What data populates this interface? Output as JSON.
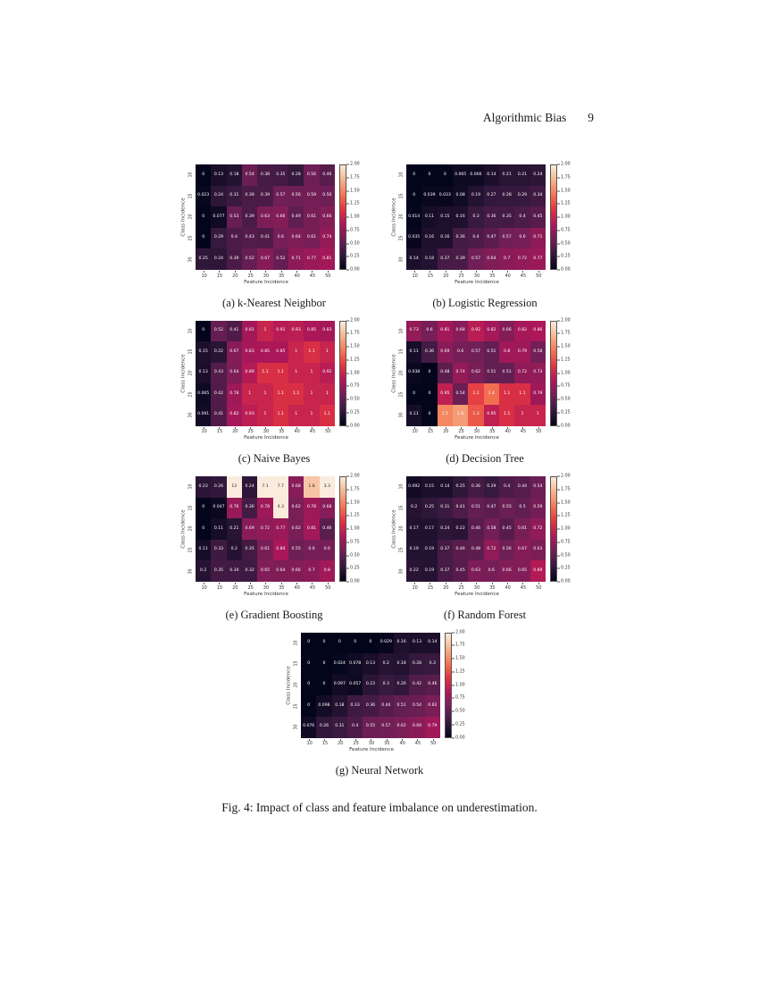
{
  "header": {
    "running_title": "Algorithmic Bias",
    "page_number": "9"
  },
  "figure": {
    "caption": "Fig. 4: Impact of class and feature imbalance on underestimation.",
    "x_label": "Feature Incidence",
    "y_label": "Class Incidence",
    "x_ticks": [
      "10",
      "15",
      "20",
      "25",
      "30",
      "35",
      "40",
      "45",
      "50"
    ],
    "y_ticks": [
      "10",
      "15",
      "20",
      "25",
      "30"
    ],
    "colorbar_ticks": [
      "2.00",
      "1.75",
      "1.50",
      "1.25",
      "1.00",
      "0.75",
      "0.50",
      "0.25",
      "0.00"
    ],
    "colormap_stops": [
      "#03051A",
      "#35193E",
      "#701F57",
      "#AD1759",
      "#E13342",
      "#F37651",
      "#F6B48E",
      "#FAEBDD"
    ],
    "vmin": 0,
    "vmax": 2
  },
  "chart_data": [
    {
      "type": "heatmap",
      "label": "(a) k-Nearest Neighbor",
      "values": [
        [
          "0",
          "0.13",
          "0.18",
          "0.54",
          "0.38",
          "0.35",
          "0.28",
          "0.56",
          "0.46"
        ],
        [
          "0.023",
          "0.24",
          "0.31",
          "0.39",
          "0.39",
          "0.57",
          "0.56",
          "0.59",
          "0.56"
        ],
        [
          "0",
          "0.077",
          "0.53",
          "0.39",
          "0.63",
          "0.66",
          "0.49",
          "0.61",
          "0.66"
        ],
        [
          "0",
          "0.29",
          "0.4",
          "0.43",
          "0.41",
          "0.6",
          "0.64",
          "0.61",
          "0.74"
        ],
        [
          "0.25",
          "0.24",
          "0.39",
          "0.52",
          "0.67",
          "0.52",
          "0.71",
          "0.77",
          "0.81"
        ]
      ]
    },
    {
      "type": "heatmap",
      "label": "(b) Logistic Regression",
      "values": [
        [
          "0",
          "0",
          "0",
          "0.065",
          "0.066",
          "0.14",
          "0.21",
          "0.21",
          "0.24"
        ],
        [
          "0",
          "0.039",
          "0.033",
          "0.08",
          "0.19",
          "0.27",
          "0.28",
          "0.29",
          "0.34"
        ],
        [
          "0.014",
          "0.11",
          "0.15",
          "0.16",
          "0.3",
          "0.36",
          "0.35",
          "0.4",
          "0.45"
        ],
        [
          "0.035",
          "0.16",
          "0.16",
          "0.36",
          "0.4",
          "0.47",
          "0.57",
          "0.6",
          "0.71"
        ],
        [
          "0.14",
          "0.18",
          "0.37",
          "0.39",
          "0.57",
          "0.64",
          "0.7",
          "0.72",
          "0.77"
        ]
      ]
    },
    {
      "type": "heatmap",
      "label": "(c) Naive Bayes",
      "values": [
        [
          "0",
          "0.52",
          "0.41",
          "0.81",
          "1",
          "0.91",
          "0.93",
          "0.85",
          "0.83"
        ],
        [
          "0.15",
          "0.22",
          "0.67",
          "0.83",
          "0.85",
          "0.85",
          "1",
          "1.1",
          "1"
        ],
        [
          "0.13",
          "0.43",
          "0.64",
          "0.89",
          "1.1",
          "1.1",
          "1",
          "1",
          "0.92"
        ],
        [
          "0.065",
          "0.42",
          "0.78",
          "1",
          "1",
          "1.1",
          "1.1",
          "1",
          "1"
        ],
        [
          "0.091",
          "0.41",
          "0.82",
          "0.93",
          "1",
          "1.1",
          "1",
          "1",
          "1.1"
        ]
      ]
    },
    {
      "type": "heatmap",
      "label": "(d) Decision Tree",
      "values": [
        [
          "0.73",
          "0.6",
          "0.81",
          "0.68",
          "0.92",
          "0.82",
          "0.66",
          "0.82",
          "0.86"
        ],
        [
          "0.11",
          "0.36",
          "0.69",
          "0.6",
          "0.57",
          "0.51",
          "0.8",
          "0.79",
          "0.58"
        ],
        [
          "0.038",
          "0",
          "0.48",
          "0.74",
          "0.62",
          "0.51",
          "0.51",
          "0.72",
          "0.73"
        ],
        [
          "0",
          "0",
          "0.95",
          "0.54",
          "1.2",
          "1.4",
          "1.1",
          "1.1",
          "0.79"
        ],
        [
          "0.11",
          "0",
          "1.5",
          "1.6",
          "1.3",
          "0.95",
          "1.1",
          "1",
          "1"
        ]
      ]
    },
    {
      "type": "heatmap",
      "label": "(e) Gradient Boosting",
      "values": [
        [
          "0.23",
          "0.26",
          "12",
          "0.24",
          "7.1",
          "7.7",
          "0.68",
          "1.8",
          "3.3"
        ],
        [
          "0",
          "0.047",
          "0.76",
          "0.36",
          "0.78",
          "4.3",
          "0.62",
          "0.78",
          "0.68"
        ],
        [
          "0",
          "0.11",
          "0.21",
          "0.69",
          "0.72",
          "0.77",
          "0.62",
          "0.81",
          "0.46"
        ],
        [
          "0.11",
          "0.33",
          "0.2",
          "0.35",
          "0.61",
          "0.84",
          "0.55",
          "0.6",
          "0.6"
        ],
        [
          "0.2",
          "0.35",
          "0.34",
          "0.32",
          "0.65",
          "0.64",
          "0.66",
          "0.7",
          "0.8"
        ]
      ]
    },
    {
      "type": "heatmap",
      "label": "(f) Random Forest",
      "values": [
        [
          "0.092",
          "0.15",
          "0.14",
          "0.25",
          "0.36",
          "0.29",
          "0.4",
          "0.44",
          "0.54"
        ],
        [
          "0.2",
          "0.25",
          "0.31",
          "0.41",
          "0.51",
          "0.47",
          "0.55",
          "0.5",
          "0.59"
        ],
        [
          "0.17",
          "0.17",
          "0.24",
          "0.22",
          "0.46",
          "0.58",
          "0.45",
          "0.61",
          "0.72"
        ],
        [
          "0.19",
          "0.19",
          "0.37",
          "0.46",
          "0.48",
          "0.72",
          "0.56",
          "0.67",
          "0.63"
        ],
        [
          "0.22",
          "0.19",
          "0.37",
          "0.45",
          "0.63",
          "0.6",
          "0.66",
          "0.65",
          "0.89"
        ]
      ]
    },
    {
      "type": "heatmap",
      "label": "(g) Neural Network",
      "values": [
        [
          "0",
          "0",
          "0",
          "0",
          "0",
          "0.029",
          "0.16",
          "0.13",
          "0.14"
        ],
        [
          "0",
          "0",
          "0.024",
          "0.078",
          "0.13",
          "0.2",
          "0.18",
          "0.28",
          "0.3"
        ],
        [
          "0",
          "0",
          "0.097",
          "0.057",
          "0.23",
          "0.3",
          "0.26",
          "0.42",
          "0.46"
        ],
        [
          "0",
          "0.098",
          "0.18",
          "0.33",
          "0.36",
          "0.44",
          "0.51",
          "0.54",
          "0.62"
        ],
        [
          "0.076",
          "0.26",
          "0.31",
          "0.4",
          "0.55",
          "0.57",
          "0.62",
          "0.69",
          "0.79"
        ]
      ]
    }
  ]
}
